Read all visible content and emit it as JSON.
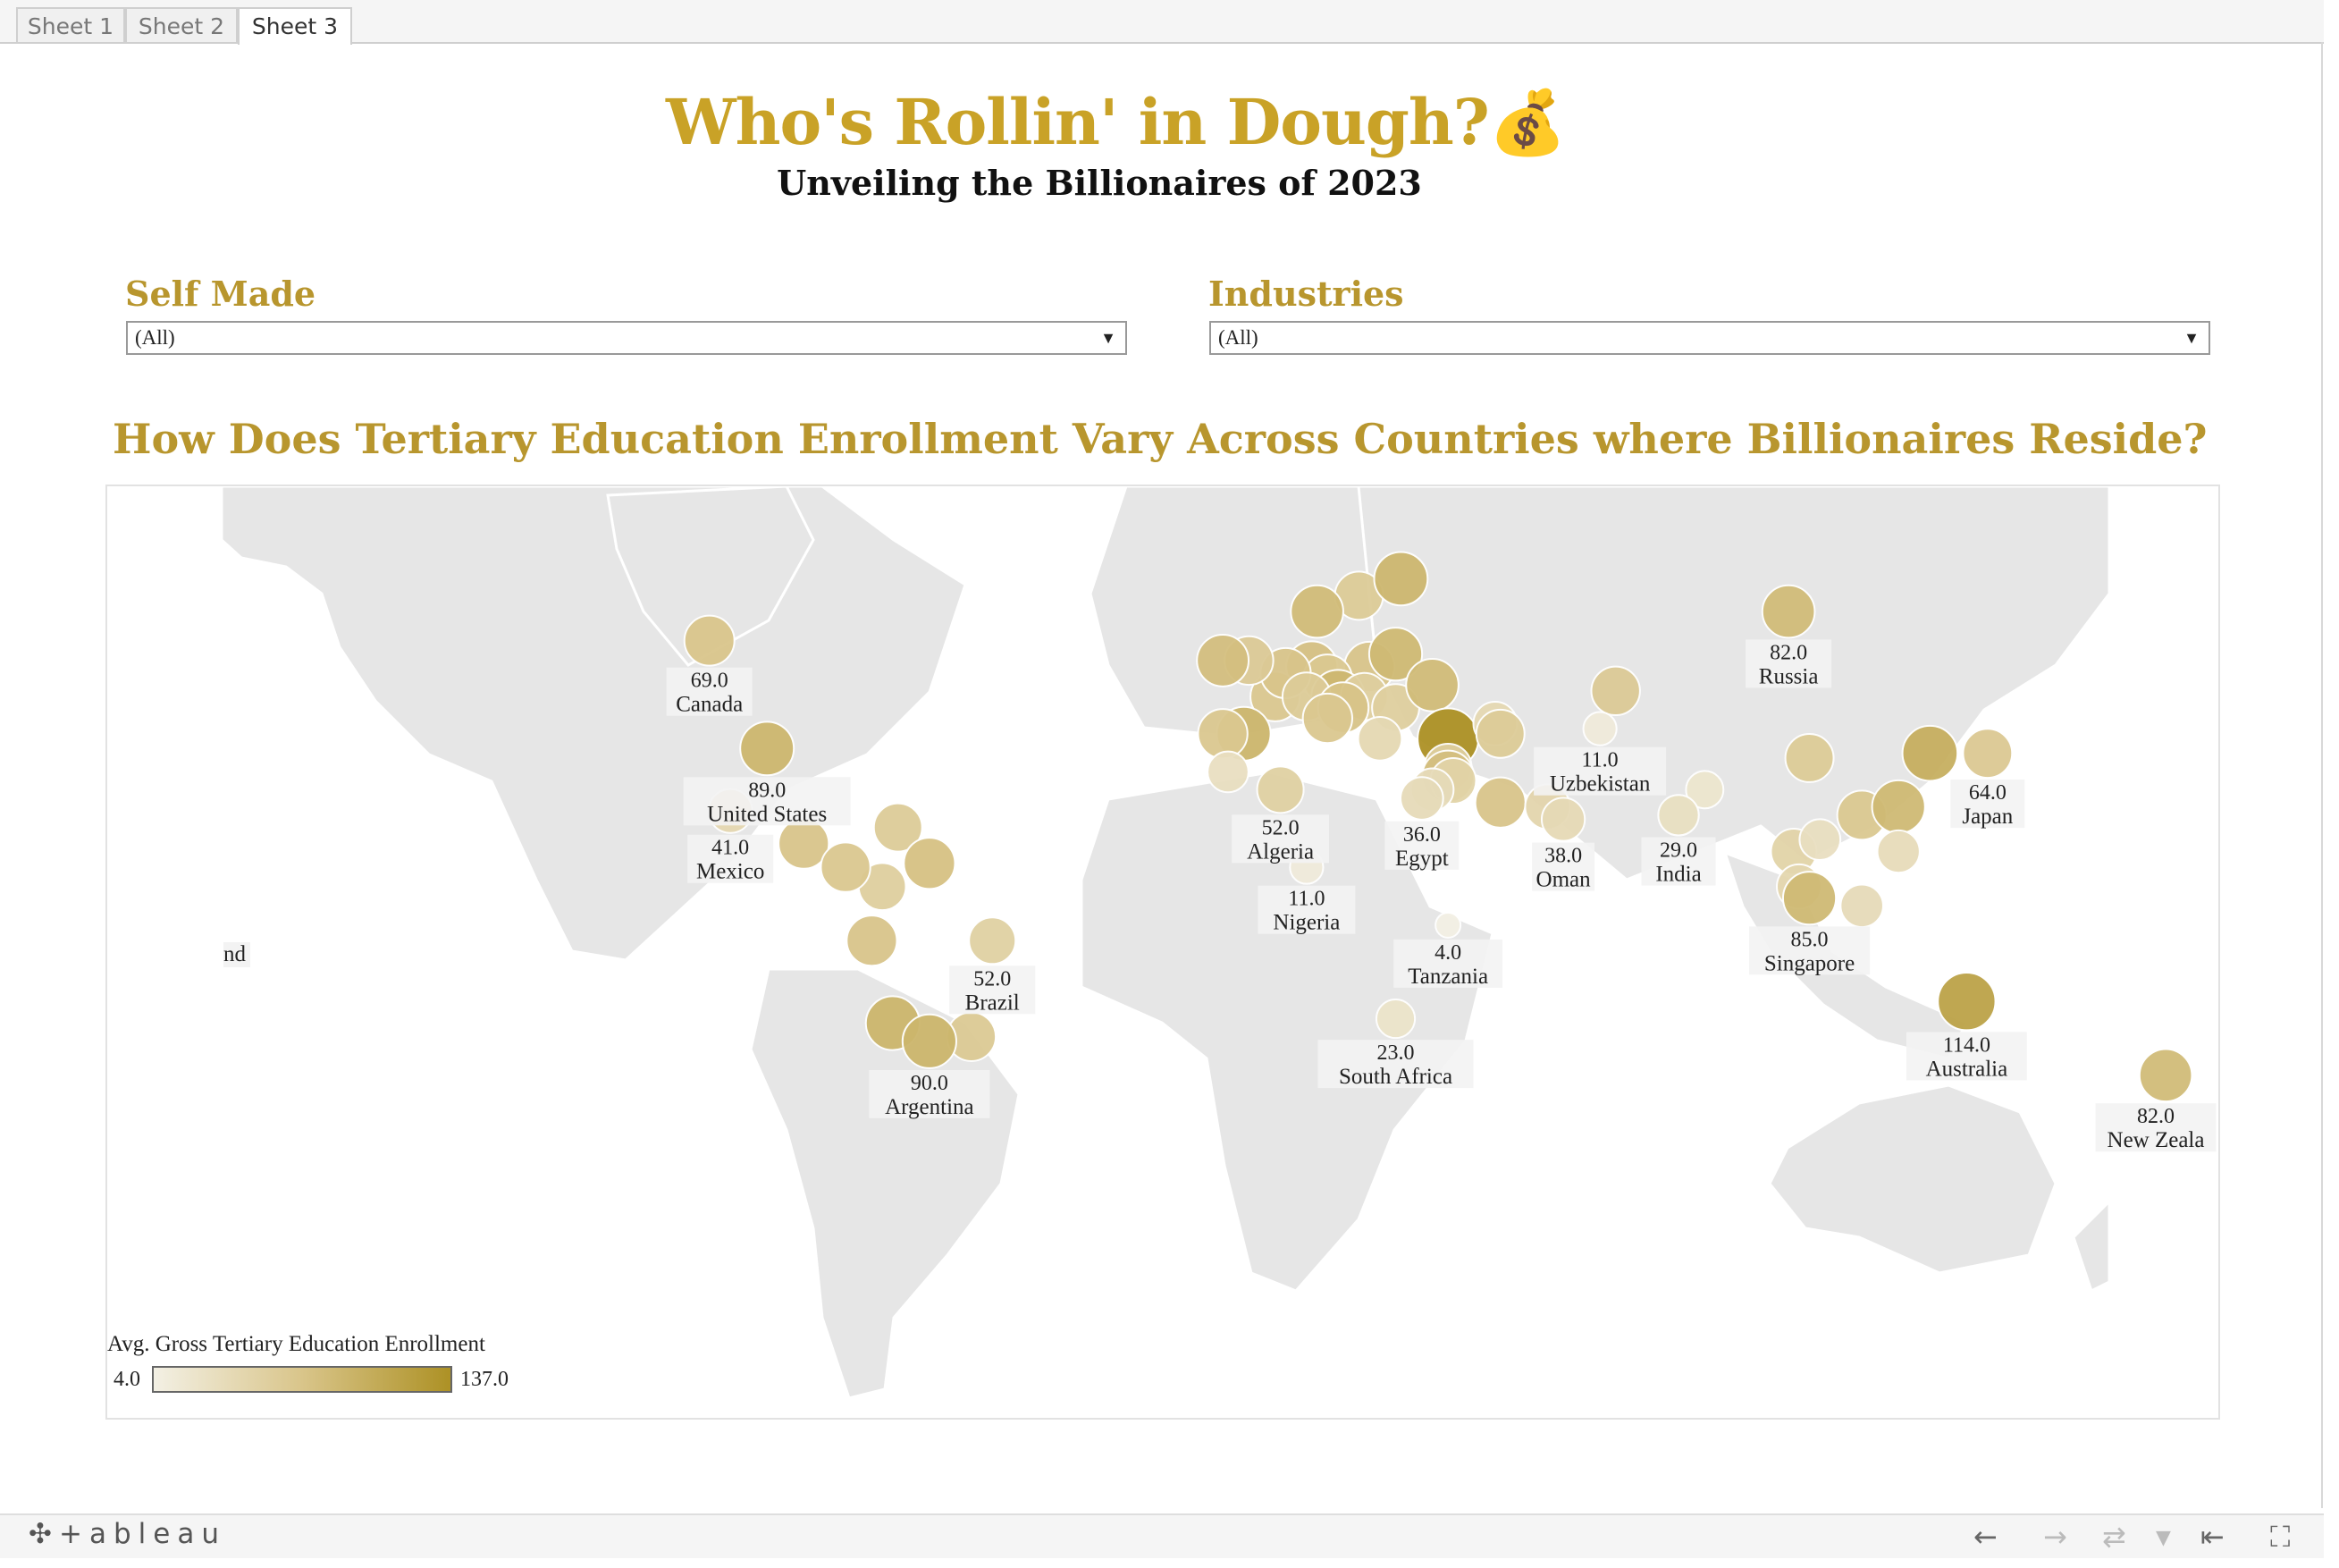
{
  "tabs": [
    "Sheet 1",
    "Sheet 2",
    "Sheet 3"
  ],
  "header": {
    "title": "Who's Rollin' in Dough?",
    "emoji": "💰",
    "subtitle": "Unveiling the Billionaires of 2023"
  },
  "filters": {
    "self_made": {
      "label": "Self Made",
      "value": "(All)"
    },
    "industries": {
      "label": "Industries",
      "value": "(All)"
    }
  },
  "question": "How Does Tertiary Education Enrollment Vary Across Countries where Billionaires Reside?",
  "legend": {
    "title": "Avg. Gross Tertiary Education Enrollment",
    "min": "4.0",
    "max": "137.0"
  },
  "colors": {
    "accent": "#C9A227",
    "heading": "#B8962E",
    "low": "#F3F0E4",
    "high": "#AD9125"
  },
  "chart_data": {
    "type": "scatter",
    "encoding": "bubble map",
    "title": "",
    "color_range": [
      4,
      137
    ],
    "labeled": [
      {
        "country": "Canada",
        "value": 69.0,
        "value_label": "69.0",
        "lon": -106,
        "lat": 56
      },
      {
        "country": "United States",
        "value": 89.0,
        "value_label": "89.0",
        "lon": -95,
        "lat": 37
      },
      {
        "country": "Mexico",
        "value": 41.0,
        "value_label": "41.0",
        "lon": -102,
        "lat": 23
      },
      {
        "country": "Brazil",
        "value": 52.0,
        "value_label": "52.0",
        "lon": -52,
        "lat": -10
      },
      {
        "country": "Argentina",
        "value": 90.0,
        "value_label": "90.0",
        "lon": -64,
        "lat": -34
      },
      {
        "country": "Algeria",
        "value": 52.0,
        "value_label": "52.0",
        "lon": 3,
        "lat": 28
      },
      {
        "country": "Egypt",
        "value": 36.0,
        "value_label": "36.0",
        "lon": 30,
        "lat": 26
      },
      {
        "country": "Nigeria",
        "value": 11.0,
        "value_label": "11.0",
        "lon": 8,
        "lat": 9
      },
      {
        "country": "Tanzania",
        "value": 4.0,
        "value_label": "4.0",
        "lon": 35,
        "lat": -6
      },
      {
        "country": "South Africa",
        "value": 23.0,
        "value_label": "23.0",
        "lon": 25,
        "lat": -29
      },
      {
        "country": "Oman",
        "value": 38.0,
        "value_label": "38.0",
        "lon": 57,
        "lat": 21
      },
      {
        "country": "Uzbekistan",
        "value": 11.0,
        "value_label": "11.0",
        "lon": 64,
        "lat": 41
      },
      {
        "country": "India",
        "value": 29.0,
        "value_label": "29.0",
        "lon": 79,
        "lat": 22
      },
      {
        "country": "Russia",
        "value": 82.0,
        "value_label": "82.0",
        "lon": 100,
        "lat": 60
      },
      {
        "country": "Japan",
        "value": 64.0,
        "value_label": "64.0",
        "lon": 138,
        "lat": 36
      },
      {
        "country": "Singapore",
        "value": 85.0,
        "value_label": "85.0",
        "lon": 104,
        "lat": 1
      },
      {
        "country": "Australia",
        "value": 114.0,
        "value_label": "114.0",
        "lon": 134,
        "lat": -25
      },
      {
        "country": "New Zeala",
        "value": 82.0,
        "value_label": "82.0",
        "lon": 172,
        "lat": -41
      }
    ],
    "unlabeled": [
      {
        "lon": 18,
        "lat": 62,
        "value": 60
      },
      {
        "lon": 26,
        "lat": 64,
        "value": 88
      },
      {
        "lon": 10,
        "lat": 60,
        "value": 82
      },
      {
        "lon": 20,
        "lat": 52,
        "value": 70
      },
      {
        "lon": 25,
        "lat": 54,
        "value": 85
      },
      {
        "lon": 9,
        "lat": 52,
        "value": 75
      },
      {
        "lon": 2,
        "lat": 47,
        "value": 66
      },
      {
        "lon": 12,
        "lat": 50,
        "value": 65
      },
      {
        "lon": 4,
        "lat": 51,
        "value": 70
      },
      {
        "lon": -3,
        "lat": 53,
        "value": 62
      },
      {
        "lon": -8,
        "lat": 53,
        "value": 78
      },
      {
        "lon": 14,
        "lat": 47,
        "value": 87
      },
      {
        "lon": 8,
        "lat": 47,
        "value": 60
      },
      {
        "lon": 19,
        "lat": 47,
        "value": 55
      },
      {
        "lon": 15,
        "lat": 45,
        "value": 72
      },
      {
        "lon": 25,
        "lat": 45,
        "value": 55
      },
      {
        "lon": 32,
        "lat": 49,
        "value": 82
      },
      {
        "lon": 12,
        "lat": 43,
        "value": 66
      },
      {
        "lon": -4,
        "lat": 40,
        "value": 90
      },
      {
        "lon": -8,
        "lat": 40,
        "value": 66
      },
      {
        "lon": 35,
        "lat": 39,
        "value": 137
      },
      {
        "lon": 22,
        "lat": 39,
        "value": 40
      },
      {
        "lon": 44,
        "lat": 42,
        "value": 40
      },
      {
        "lon": 35,
        "lat": 33,
        "value": 55
      },
      {
        "lon": 45,
        "lat": 40,
        "value": 60
      },
      {
        "lon": 35,
        "lat": 31,
        "value": 78
      },
      {
        "lon": 36,
        "lat": 30,
        "value": 48
      },
      {
        "lon": 32,
        "lat": 28,
        "value": 36
      },
      {
        "lon": 45,
        "lat": 25,
        "value": 70
      },
      {
        "lon": 54,
        "lat": 24,
        "value": 45
      },
      {
        "lon": 67,
        "lat": 48,
        "value": 62
      },
      {
        "lon": -7,
        "lat": 32,
        "value": 30
      },
      {
        "lon": 104,
        "lat": 35,
        "value": 60
      },
      {
        "lon": 127,
        "lat": 36,
        "value": 98
      },
      {
        "lon": 114,
        "lat": 22,
        "value": 65
      },
      {
        "lon": 121,
        "lat": 24,
        "value": 85
      },
      {
        "lon": 121,
        "lat": 13,
        "value": 35
      },
      {
        "lon": 101,
        "lat": 13,
        "value": 48
      },
      {
        "lon": 106,
        "lat": 16,
        "value": 30
      },
      {
        "lon": 102,
        "lat": 4,
        "value": 43
      },
      {
        "lon": 114,
        "lat": -1,
        "value": 36
      },
      {
        "lon": -73,
        "lat": 4,
        "value": 55
      },
      {
        "lon": -75,
        "lat": -10,
        "value": 70
      },
      {
        "lon": -71,
        "lat": -30,
        "value": 90
      },
      {
        "lon": -56,
        "lat": -33,
        "value": 63
      },
      {
        "lon": -88,
        "lat": 15,
        "value": 70
      },
      {
        "lon": -80,
        "lat": 9,
        "value": 66
      },
      {
        "lon": -70,
        "lat": 19,
        "value": 60
      },
      {
        "lon": -64,
        "lat": 10,
        "value": 75
      },
      {
        "lon": 84,
        "lat": 28,
        "value": 20
      }
    ]
  },
  "partial_label": "nd",
  "footer": {
    "brand": "+ableau"
  }
}
